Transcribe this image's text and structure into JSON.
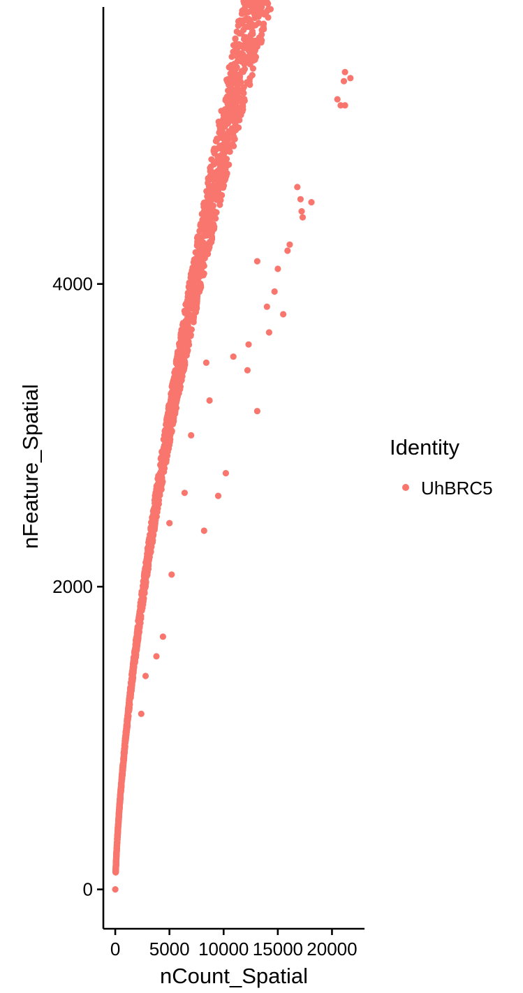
{
  "chart_data": {
    "type": "scatter",
    "title": "",
    "xlabel": "nCount_Spatial",
    "ylabel": "nFeature_Spatial",
    "xlim": [
      -1100,
      23000
    ],
    "ylim": [
      -260,
      5830
    ],
    "xticks": [
      0,
      5000,
      10000,
      15000,
      20000
    ],
    "xtick_labels": [
      "0",
      "5000",
      "10000",
      "15000",
      "20000"
    ],
    "yticks": [
      0,
      2000,
      4000
    ],
    "ytick_labels": [
      "0",
      "2000",
      "4000"
    ],
    "grid": false,
    "legend": {
      "title": "Identity",
      "position": "right",
      "entries": [
        {
          "label": "UhBRC5",
          "color": "#F8766D"
        }
      ]
    },
    "series": [
      {
        "name": "UhBRC5",
        "color": "#F8766D",
        "points": [
          [
            21200,
            5400
          ],
          [
            21100,
            5340
          ],
          [
            21700,
            5360
          ],
          [
            20500,
            5220
          ],
          [
            20800,
            5180
          ],
          [
            21200,
            5180
          ],
          [
            16800,
            4640
          ],
          [
            17100,
            4560
          ],
          [
            18100,
            4540
          ],
          [
            17200,
            4480
          ],
          [
            17300,
            4440
          ],
          [
            16100,
            4260
          ],
          [
            15900,
            4220
          ],
          [
            13100,
            4150
          ],
          [
            15000,
            4100
          ],
          [
            14700,
            3950
          ],
          [
            14000,
            3850
          ],
          [
            15500,
            3800
          ],
          [
            14200,
            3680
          ],
          [
            12300,
            3600
          ],
          [
            10900,
            3520
          ],
          [
            8400,
            3480
          ],
          [
            12200,
            3430
          ],
          [
            8700,
            3230
          ],
          [
            7000,
            3000
          ],
          [
            13100,
            3160
          ],
          [
            10200,
            2750
          ],
          [
            6400,
            2620
          ],
          [
            9500,
            2600
          ],
          [
            5000,
            2420
          ],
          [
            8200,
            2370
          ],
          [
            5200,
            2080
          ],
          [
            4400,
            1670
          ],
          [
            3800,
            1540
          ],
          [
            2800,
            1410
          ],
          [
            2400,
            1160
          ]
        ]
      }
    ]
  }
}
